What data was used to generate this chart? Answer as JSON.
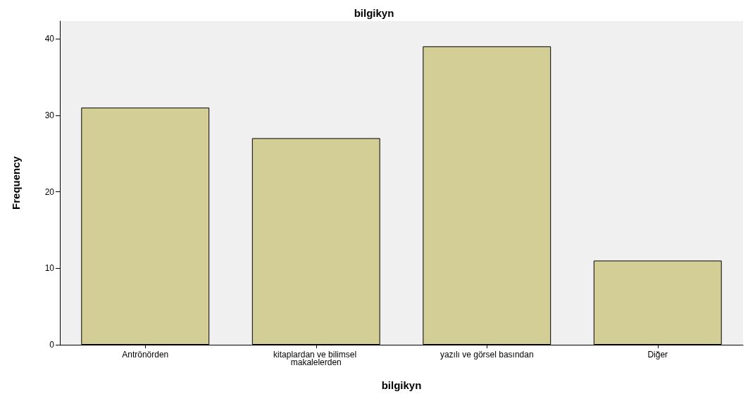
{
  "chart_data": {
    "type": "bar",
    "title": "bilgikyn",
    "xlabel": "bilgikyn",
    "ylabel": "Frequency",
    "categories": [
      "Antrönörden",
      "kitaplardan ve bilimsel makalelerden",
      "yazılı ve görsel basından",
      "Diğer"
    ],
    "values": [
      31,
      27,
      39,
      11
    ],
    "color": "#d3cd96",
    "ylim": [
      0,
      42.3
    ],
    "yticks": [
      0,
      10,
      20,
      30,
      40
    ],
    "grid": false
  }
}
